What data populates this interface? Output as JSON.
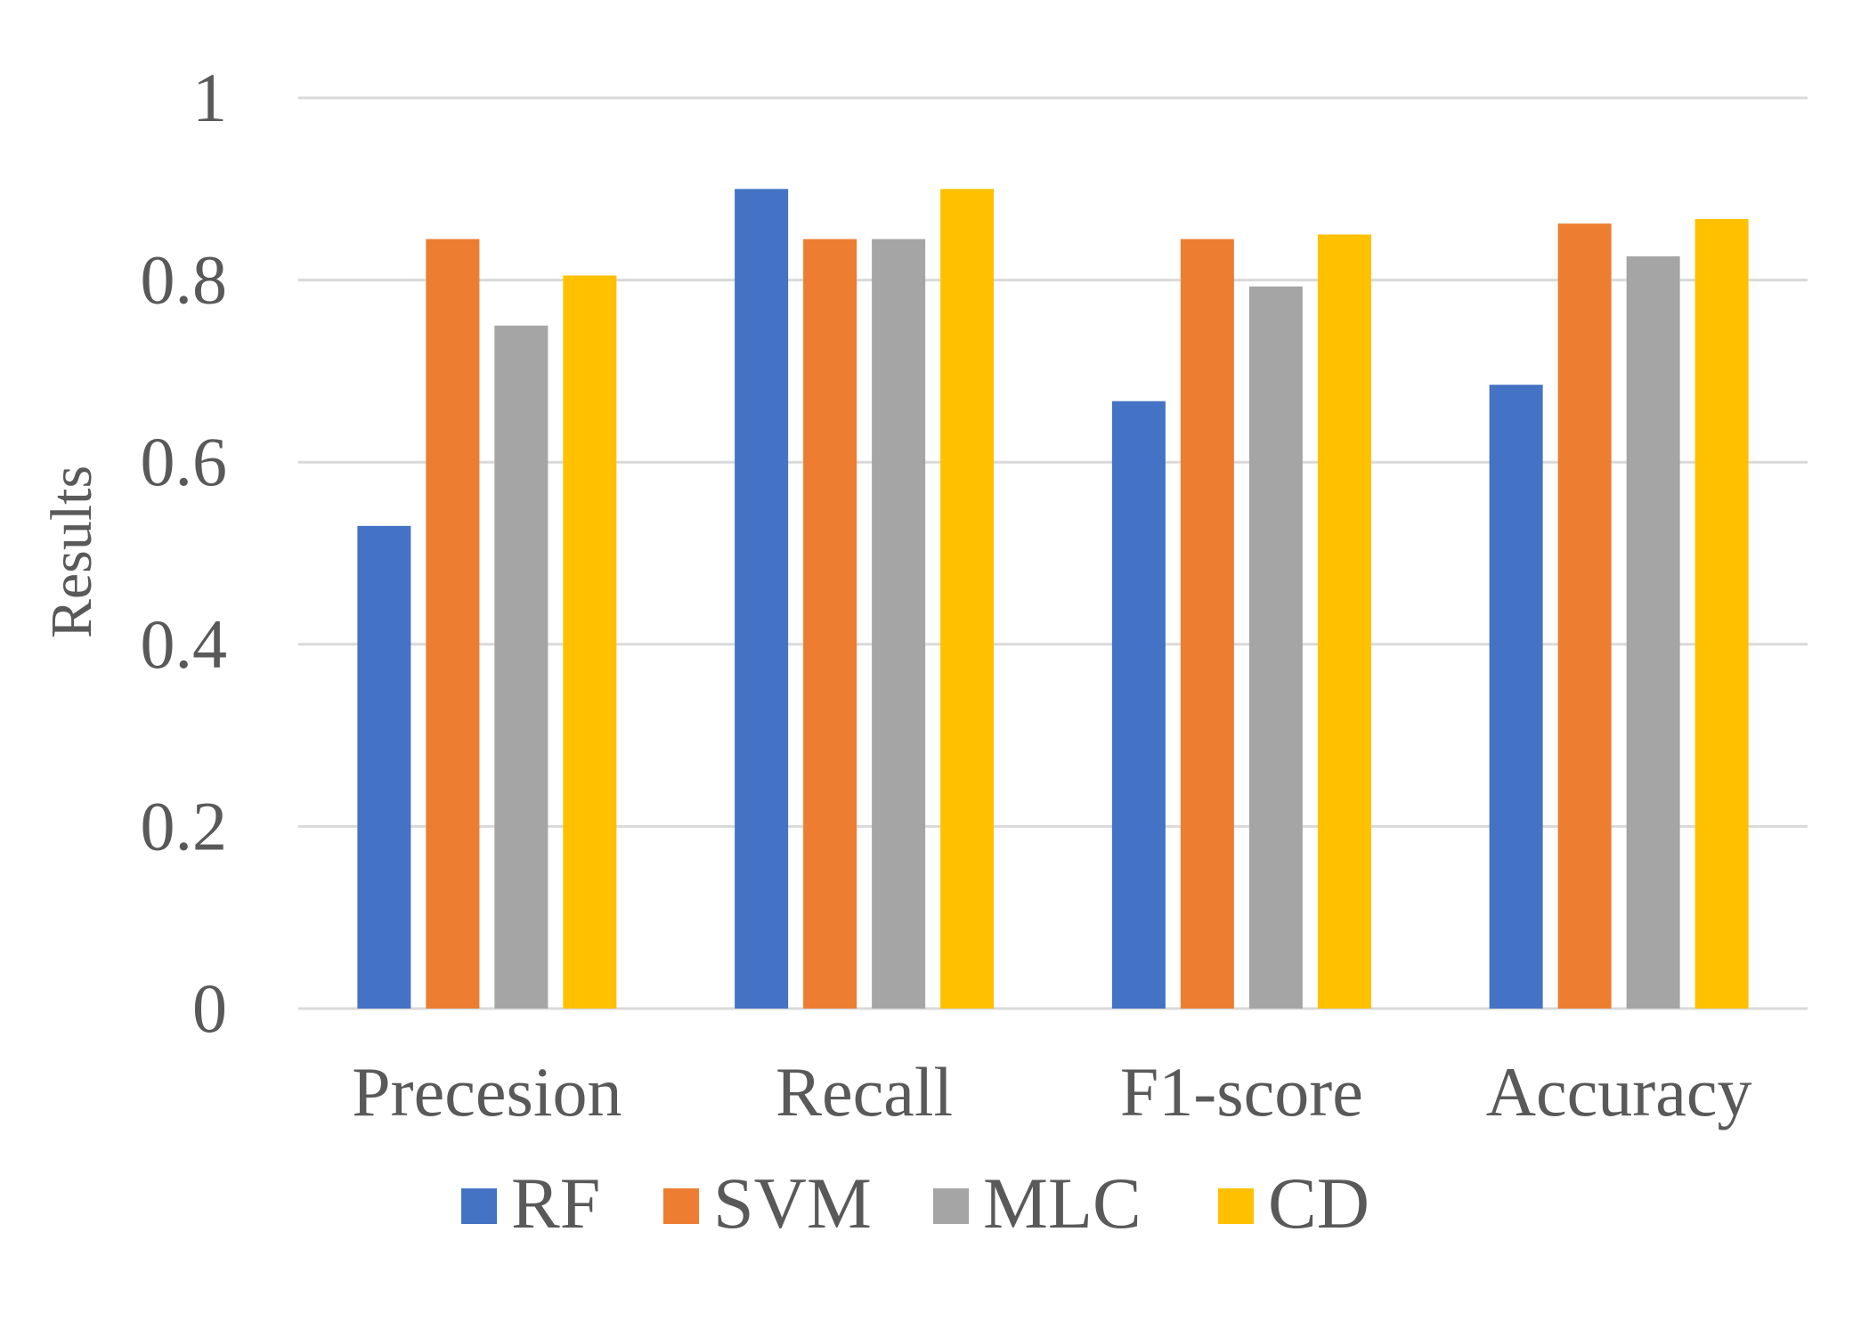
{
  "chart_data": {
    "type": "bar",
    "title": "",
    "xlabel": "",
    "ylabel": "Results",
    "ylim": [
      0,
      1
    ],
    "yticks": [
      "0",
      "0.2",
      "0.4",
      "0.6",
      "0.8",
      "1"
    ],
    "ytick_values": [
      0,
      0.2,
      0.4,
      0.6,
      0.8,
      1
    ],
    "grid": true,
    "legend_position": "bottom",
    "categories": [
      "Precesion",
      "Recall",
      "F1-score",
      "Accuracy"
    ],
    "series": [
      {
        "name": "RF",
        "color": "#4472c4",
        "values": [
          0.53,
          0.9,
          0.667,
          0.685
        ]
      },
      {
        "name": "SVM",
        "color": "#ed7d31",
        "values": [
          0.845,
          0.845,
          0.845,
          0.862
        ]
      },
      {
        "name": "MLC",
        "color": "#a5a5a5",
        "values": [
          0.75,
          0.845,
          0.793,
          0.826
        ]
      },
      {
        "name": "CD",
        "color": "#ffc000",
        "values": [
          0.805,
          0.9,
          0.85,
          0.867
        ]
      }
    ]
  }
}
